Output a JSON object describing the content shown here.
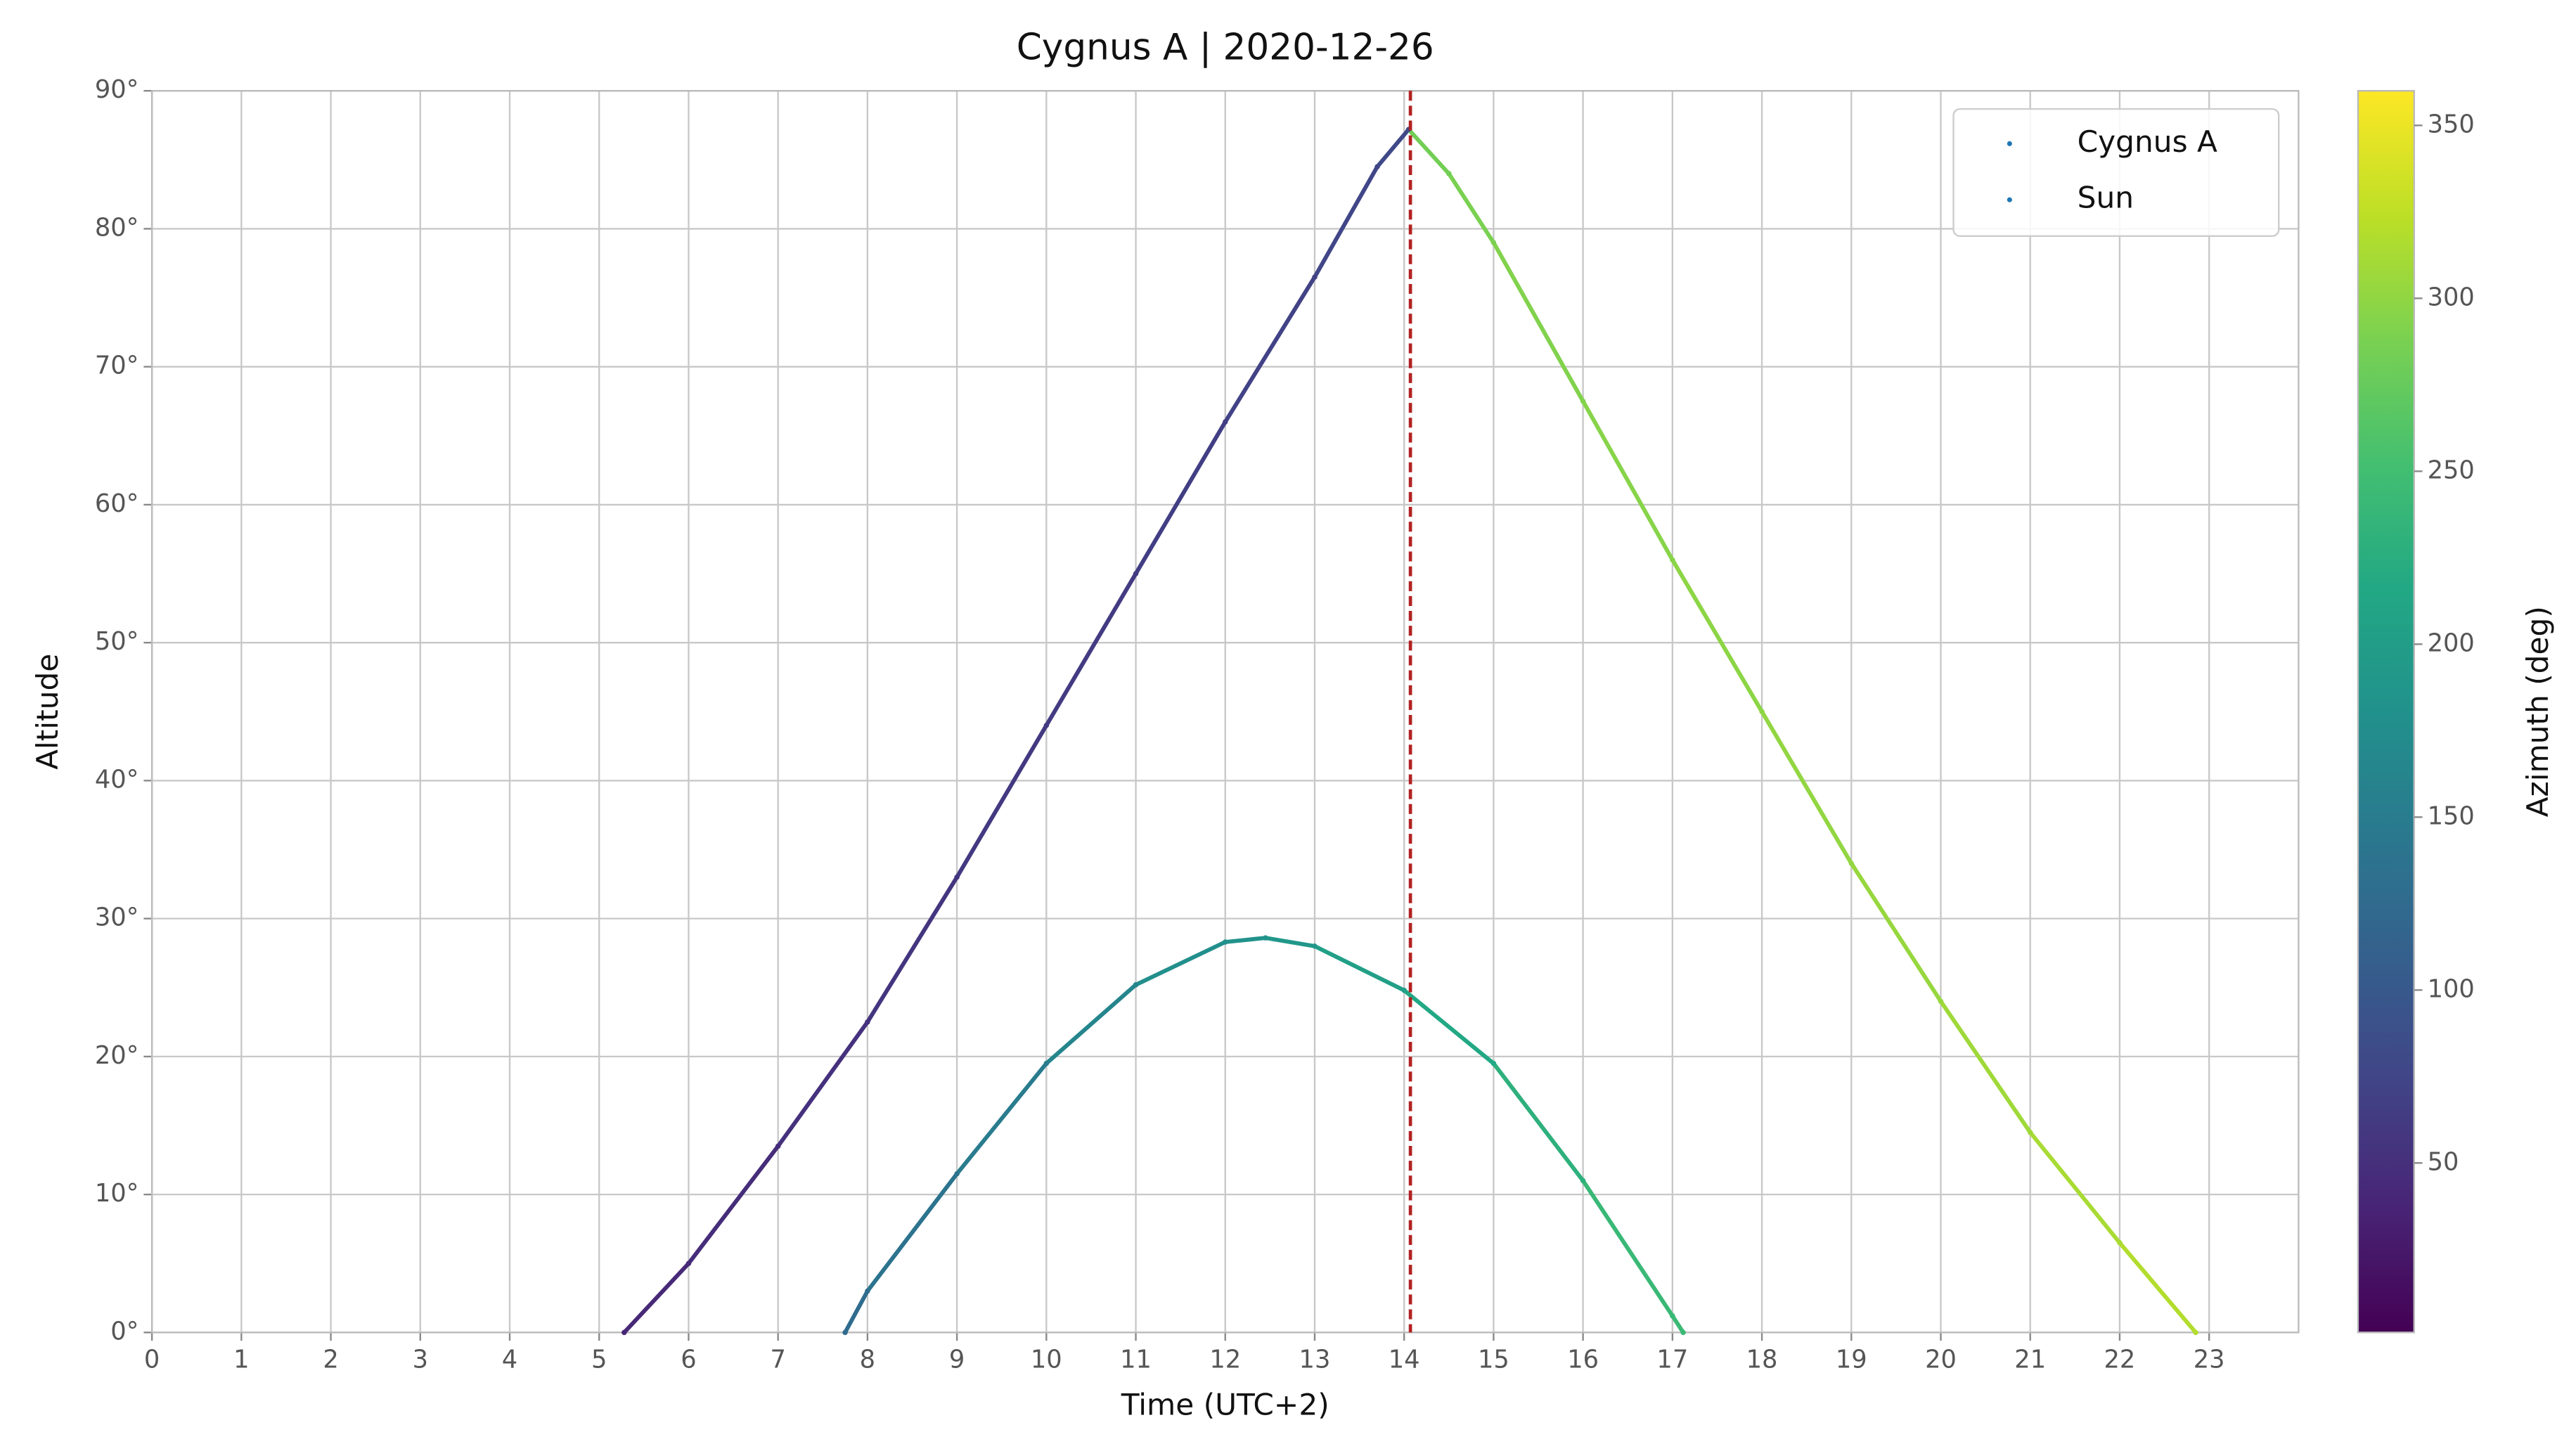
{
  "chart_data": {
    "type": "scatter",
    "title": "Cygnus A | 2020-12-26",
    "x_label": "Time (UTC+2)",
    "y_label": "Altitude",
    "colorbar_label": "Azimuth (deg)",
    "xlim": [
      0,
      24
    ],
    "xticks": [
      0,
      1,
      2,
      3,
      4,
      5,
      6,
      7,
      8,
      9,
      10,
      11,
      12,
      13,
      14,
      15,
      16,
      17,
      18,
      19,
      20,
      21,
      22,
      23
    ],
    "ylim": [
      0,
      90
    ],
    "yticks": [
      {
        "value": 0,
        "label": "0°"
      },
      {
        "value": 10,
        "label": "10°"
      },
      {
        "value": 20,
        "label": "20°"
      },
      {
        "value": 30,
        "label": "30°"
      },
      {
        "value": 40,
        "label": "40°"
      },
      {
        "value": 50,
        "label": "50°"
      },
      {
        "value": 60,
        "label": "60°"
      },
      {
        "value": 70,
        "label": "70°"
      },
      {
        "value": 80,
        "label": "80°"
      },
      {
        "value": 90,
        "label": "90°"
      }
    ],
    "clim": [
      1,
      360
    ],
    "cticks": [
      50,
      100,
      150,
      200,
      250,
      300,
      350
    ],
    "grid": true,
    "legend": "upper right",
    "vline": 14.07,
    "vline_color": "#b22222",
    "series": [
      {
        "name": "Cygnus A",
        "color": "#1f77b4",
        "x": [
          5.28,
          6,
          7,
          8,
          9,
          10,
          11,
          12,
          13,
          13.7,
          14.05,
          14.5,
          15,
          16,
          17,
          18,
          19,
          20,
          21,
          22,
          22.85
        ],
        "values": [
          0,
          5,
          13.5,
          22.5,
          33,
          44,
          55,
          66,
          76.5,
          84.5,
          87.2,
          84,
          79,
          67.5,
          56,
          45,
          34,
          24,
          14.5,
          6.5,
          0
        ],
        "azimuth": [
          38,
          42,
          47,
          52,
          56,
          60,
          63,
          66,
          70,
          75,
          80,
          283,
          288,
          292,
          295,
          298,
          301,
          304,
          308,
          313,
          318
        ]
      },
      {
        "name": "Sun",
        "color": "#1f77b4",
        "x": [
          7.75,
          8,
          9,
          10,
          11,
          12,
          12.45,
          13,
          14,
          15,
          16,
          17,
          17.12
        ],
        "values": [
          0,
          3,
          11.5,
          19.5,
          25.2,
          28.3,
          28.6,
          28,
          24.8,
          19.5,
          11,
          1.2,
          0
        ],
        "azimuth": [
          125,
          128,
          138,
          150,
          163,
          177,
          183,
          190,
          203,
          216,
          229,
          241,
          243
        ]
      }
    ]
  }
}
